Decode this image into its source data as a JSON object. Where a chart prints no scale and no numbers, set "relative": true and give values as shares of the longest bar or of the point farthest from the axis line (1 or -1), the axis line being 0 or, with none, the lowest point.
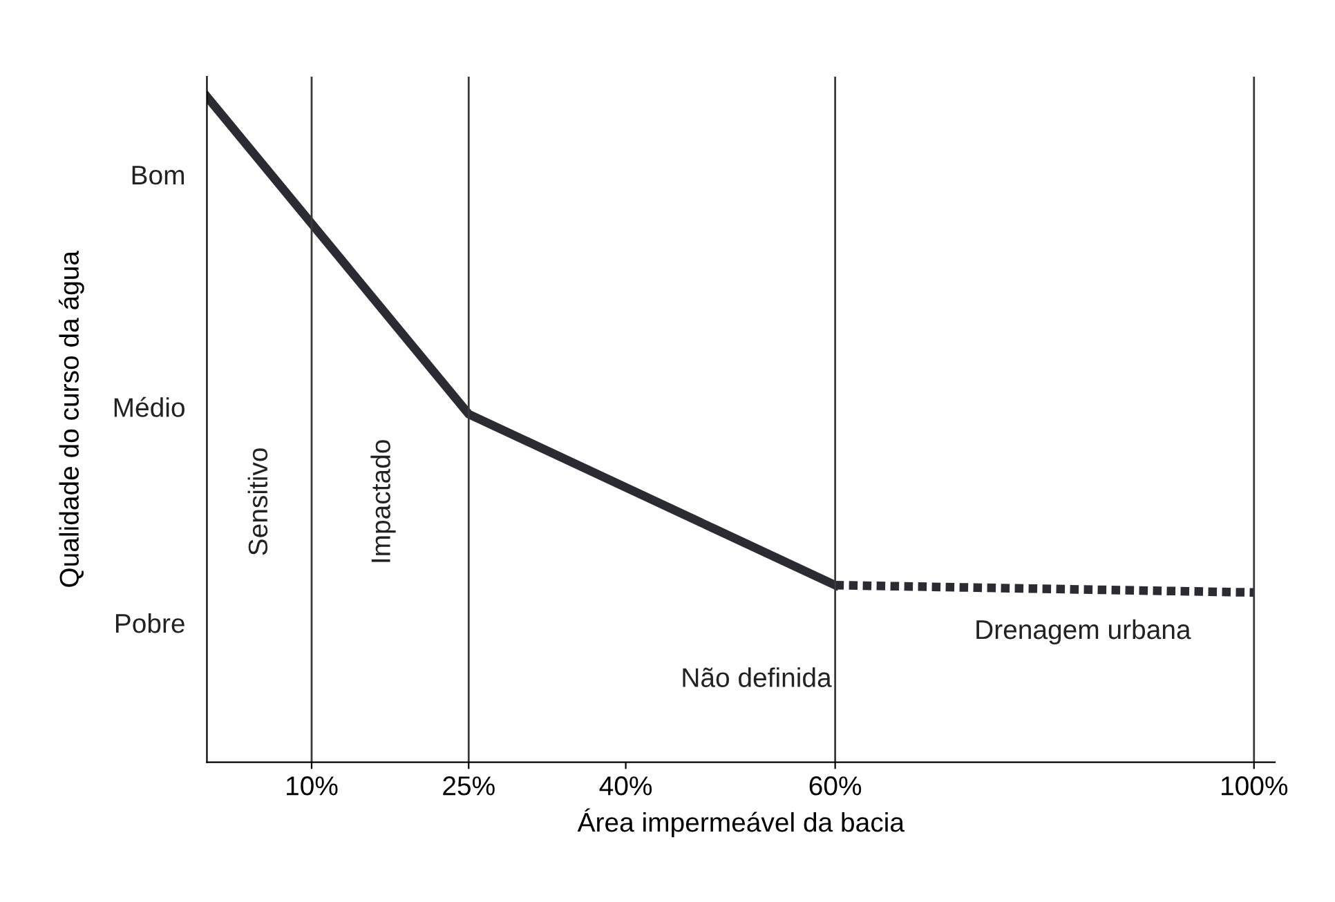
{
  "chart_data": {
    "type": "line",
    "xlabel": "Área impermeável da bacia",
    "ylabel": "Qualidade do curso da água",
    "xlim": [
      0,
      102
    ],
    "relative": true,
    "ylim": [
      0,
      1.03
    ],
    "xticks": [
      {
        "value": 10,
        "label": "10%"
      },
      {
        "value": 25,
        "label": "25%"
      },
      {
        "value": 40,
        "label": "40%"
      },
      {
        "value": 60,
        "label": "60%"
      },
      {
        "value": 100,
        "label": "100%"
      }
    ],
    "tick_labels": "x",
    "series": [
      {
        "color": "#2b2b33",
        "x": [
          0,
          25,
          60
        ],
        "values": [
          1,
          0.523,
          0.266
        ],
        "line_style": "solid"
      },
      {
        "color": "#2b2b33",
        "x": [
          60,
          100
        ],
        "values": [
          0.266,
          0.255
        ],
        "line_style": "dotted"
      }
    ],
    "ref_lines": [
      {
        "axis": "x",
        "value": 10,
        "color": "#3a3a3a"
      },
      {
        "axis": "x",
        "value": 25,
        "color": "#3a3a3a"
      },
      {
        "axis": "x",
        "value": 60,
        "color": "#3a3a3a"
      },
      {
        "axis": "x",
        "value": 100,
        "color": "#3a3a3a"
      }
    ],
    "annotations": [
      "Sensitivo",
      "Impactado",
      "Não definida",
      "Drenagem urbana",
      "Bom",
      "Médio",
      "Pobre"
    ],
    "grid": false,
    "legend": false,
    "marker": "none"
  }
}
